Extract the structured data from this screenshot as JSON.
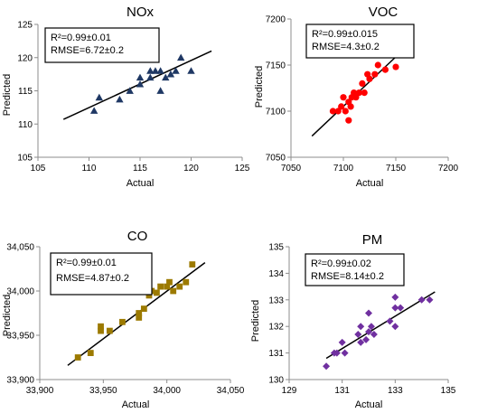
{
  "chart_data": [
    {
      "type": "scatter",
      "title": "NOx",
      "xlabel": "Actual",
      "ylabel": "Predicted",
      "xlim": [
        105,
        125
      ],
      "ylim": [
        105,
        125
      ],
      "xticks": [
        "105",
        "110",
        "115",
        "120",
        "125"
      ],
      "yticks": [
        "105",
        "110",
        "115",
        "120",
        "125"
      ],
      "marker": "triangle",
      "color": "#1f3864",
      "stats": [
        "R²=0.99±0.01",
        "RMSE=6.72±0.2"
      ],
      "points": [
        [
          110.5,
          112
        ],
        [
          111,
          114
        ],
        [
          113,
          113.7
        ],
        [
          114,
          115
        ],
        [
          115,
          116
        ],
        [
          115,
          117
        ],
        [
          116,
          117
        ],
        [
          116,
          118
        ],
        [
          116.5,
          118
        ],
        [
          117,
          115
        ],
        [
          117,
          118
        ],
        [
          117.5,
          117
        ],
        [
          118,
          117.5
        ],
        [
          118.5,
          118
        ],
        [
          119,
          120
        ],
        [
          120,
          118
        ]
      ],
      "fit": [
        [
          107.5,
          110.7
        ],
        [
          122,
          121
        ]
      ]
    },
    {
      "type": "scatter",
      "title": "VOC",
      "xlabel": "Actual",
      "ylabel": "Predicted",
      "xlim": [
        7050,
        7200
      ],
      "ylim": [
        7050,
        7200
      ],
      "xticks": [
        "7050",
        "7100",
        "7150",
        "7200"
      ],
      "yticks": [
        "7050",
        "7100",
        "7150",
        "7200"
      ],
      "marker": "circle",
      "color": "#ff0000",
      "stats": [
        "R²=0.99±0.015",
        "RMSE=4.3±0.2"
      ],
      "points": [
        [
          7090,
          7100
        ],
        [
          7095,
          7100
        ],
        [
          7098,
          7105
        ],
        [
          7100,
          7115
        ],
        [
          7102,
          7100
        ],
        [
          7105,
          7090
        ],
        [
          7105,
          7110
        ],
        [
          7107,
          7105
        ],
        [
          7108,
          7115
        ],
        [
          7110,
          7120
        ],
        [
          7112,
          7115
        ],
        [
          7115,
          7120
        ],
        [
          7118,
          7130
        ],
        [
          7120,
          7120
        ],
        [
          7123,
          7140
        ],
        [
          7125,
          7135
        ],
        [
          7130,
          7140
        ],
        [
          7133,
          7150
        ],
        [
          7140,
          7145
        ],
        [
          7150,
          7148
        ]
      ],
      "fit": [
        [
          7070,
          7073
        ],
        [
          7165,
          7175
        ]
      ]
    },
    {
      "type": "scatter",
      "title": "CO",
      "xlabel": "Actual",
      "ylabel": "Predicted",
      "xlim": [
        33900,
        34050
      ],
      "ylim": [
        33900,
        34050
      ],
      "xticks": [
        "33,900",
        "33,950",
        "34,000",
        "34,050"
      ],
      "yticks": [
        "33,900",
        "33,950",
        "34,000",
        "34,050"
      ],
      "marker": "square",
      "color": "#9c7a00",
      "stats": [
        "R²=0.99±0.01",
        "RMSE=4.87±0.2"
      ],
      "points": [
        [
          33930,
          33925
        ],
        [
          33940,
          33930
        ],
        [
          33948,
          33955
        ],
        [
          33948,
          33960
        ],
        [
          33955,
          33955
        ],
        [
          33965,
          33965
        ],
        [
          33978,
          33970
        ],
        [
          33978,
          33975
        ],
        [
          33982,
          33980
        ],
        [
          33986,
          33995
        ],
        [
          33988,
          34000
        ],
        [
          33992,
          33998
        ],
        [
          33995,
          34005
        ],
        [
          34000,
          34005
        ],
        [
          34002,
          34010
        ],
        [
          34005,
          34000
        ],
        [
          34010,
          34005
        ],
        [
          34015,
          34010
        ],
        [
          34020,
          34030
        ]
      ],
      "fit": [
        [
          33922,
          33916
        ],
        [
          34030,
          34032
        ]
      ]
    },
    {
      "type": "scatter",
      "title": "PM",
      "xlabel": "Actual",
      "ylabel": "Predicted",
      "xlim": [
        129,
        135
      ],
      "ylim": [
        130,
        135
      ],
      "xticks": [
        "129",
        "131",
        "133",
        "135"
      ],
      "yticks": [
        "130",
        "131",
        "132",
        "133",
        "134",
        "135"
      ],
      "marker": "diamond",
      "color": "#7030a0",
      "stats": [
        "R²=0.99±0.02",
        "RMSE=8.14±0.2"
      ],
      "points": [
        [
          130.4,
          130.5
        ],
        [
          130.7,
          131
        ],
        [
          130.8,
          131
        ],
        [
          131,
          131.4
        ],
        [
          131.1,
          131
        ],
        [
          131.6,
          131.7
        ],
        [
          131.7,
          131.4
        ],
        [
          131.7,
          132
        ],
        [
          131.9,
          131.5
        ],
        [
          132,
          131.8
        ],
        [
          132,
          132.5
        ],
        [
          132.1,
          132
        ],
        [
          132.2,
          131.7
        ],
        [
          132.8,
          132.2
        ],
        [
          133,
          132.7
        ],
        [
          133,
          133.1
        ],
        [
          133.2,
          132.7
        ],
        [
          133,
          132
        ],
        [
          134,
          133
        ],
        [
          134.3,
          133
        ]
      ],
      "fit": [
        [
          130.4,
          130.8
        ],
        [
          134.5,
          133.3
        ]
      ]
    }
  ]
}
